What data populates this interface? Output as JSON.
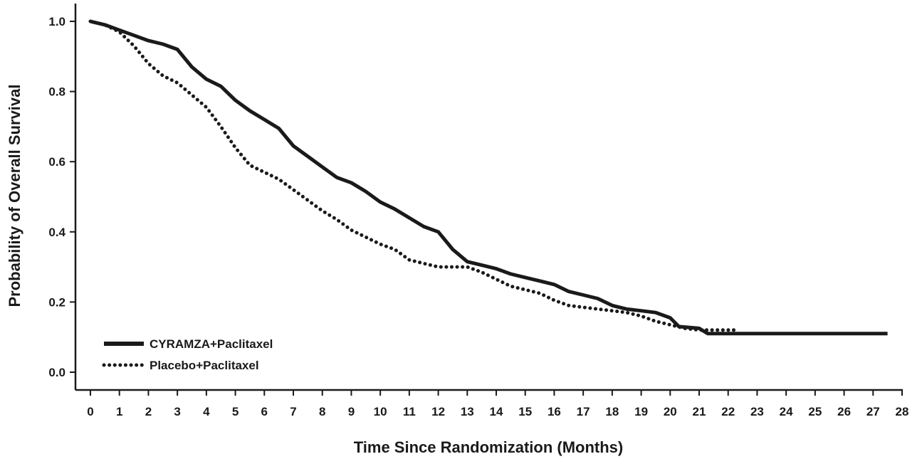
{
  "chart_data": {
    "type": "line",
    "title": "",
    "xlabel": "Time Since Randomization (Months)",
    "ylabel": "Probability of Overall Survival",
    "xlim": [
      0,
      28
    ],
    "ylim": [
      0,
      1
    ],
    "x_ticks": [
      "0",
      "1",
      "2",
      "3",
      "4",
      "5",
      "6",
      "7",
      "8",
      "9",
      "10",
      "11",
      "12",
      "13",
      "14",
      "15",
      "16",
      "17",
      "18",
      "19",
      "20",
      "21",
      "22",
      "23",
      "24",
      "25",
      "26",
      "27",
      "28"
    ],
    "y_ticks": [
      "0.0",
      "0.2",
      "0.4",
      "0.6",
      "0.8",
      "1.0"
    ],
    "grid": false,
    "legend_position": "bottom-left",
    "series": [
      {
        "name": "CYRAMZA+Paclitaxel",
        "style": "solid",
        "color": "#1a1a1a",
        "points": [
          [
            0,
            1.0
          ],
          [
            0.5,
            0.99
          ],
          [
            1,
            0.975
          ],
          [
            1.5,
            0.96
          ],
          [
            2,
            0.945
          ],
          [
            2.5,
            0.935
          ],
          [
            3,
            0.92
          ],
          [
            3.5,
            0.87
          ],
          [
            4,
            0.835
          ],
          [
            4.5,
            0.815
          ],
          [
            5,
            0.775
          ],
          [
            5.5,
            0.745
          ],
          [
            6,
            0.72
          ],
          [
            6.5,
            0.695
          ],
          [
            7,
            0.645
          ],
          [
            7.5,
            0.615
          ],
          [
            8,
            0.585
          ],
          [
            8.5,
            0.555
          ],
          [
            9,
            0.54
          ],
          [
            9.5,
            0.515
          ],
          [
            10,
            0.485
          ],
          [
            10.5,
            0.465
          ],
          [
            11,
            0.44
          ],
          [
            11.5,
            0.415
          ],
          [
            12,
            0.4
          ],
          [
            12.5,
            0.35
          ],
          [
            13,
            0.315
          ],
          [
            13.5,
            0.305
          ],
          [
            14,
            0.295
          ],
          [
            14.5,
            0.28
          ],
          [
            15,
            0.27
          ],
          [
            15.5,
            0.26
          ],
          [
            16,
            0.25
          ],
          [
            16.5,
            0.23
          ],
          [
            17,
            0.22
          ],
          [
            17.5,
            0.21
          ],
          [
            18,
            0.19
          ],
          [
            18.5,
            0.18
          ],
          [
            19,
            0.175
          ],
          [
            19.5,
            0.17
          ],
          [
            20,
            0.155
          ],
          [
            20.3,
            0.13
          ],
          [
            21,
            0.125
          ],
          [
            21.3,
            0.11
          ],
          [
            22,
            0.11
          ],
          [
            23,
            0.11
          ],
          [
            24,
            0.11
          ],
          [
            25,
            0.11
          ],
          [
            26,
            0.11
          ],
          [
            27,
            0.11
          ],
          [
            27.5,
            0.11
          ]
        ]
      },
      {
        "name": "Placebo+Paclitaxel",
        "style": "dotted",
        "color": "#1a1a1a",
        "points": [
          [
            0,
            1.0
          ],
          [
            0.5,
            0.99
          ],
          [
            1,
            0.97
          ],
          [
            1.5,
            0.93
          ],
          [
            2,
            0.88
          ],
          [
            2.5,
            0.845
          ],
          [
            3,
            0.825
          ],
          [
            3.5,
            0.79
          ],
          [
            4,
            0.755
          ],
          [
            4.5,
            0.7
          ],
          [
            5,
            0.64
          ],
          [
            5.5,
            0.59
          ],
          [
            6,
            0.57
          ],
          [
            6.5,
            0.55
          ],
          [
            7,
            0.52
          ],
          [
            7.5,
            0.49
          ],
          [
            8,
            0.46
          ],
          [
            8.5,
            0.435
          ],
          [
            9,
            0.405
          ],
          [
            9.5,
            0.385
          ],
          [
            10,
            0.365
          ],
          [
            10.5,
            0.35
          ],
          [
            11,
            0.32
          ],
          [
            11.5,
            0.31
          ],
          [
            12,
            0.3
          ],
          [
            12.5,
            0.3
          ],
          [
            13,
            0.3
          ],
          [
            13.5,
            0.285
          ],
          [
            14,
            0.265
          ],
          [
            14.5,
            0.245
          ],
          [
            15,
            0.235
          ],
          [
            15.5,
            0.225
          ],
          [
            16,
            0.205
          ],
          [
            16.5,
            0.19
          ],
          [
            17,
            0.185
          ],
          [
            17.5,
            0.18
          ],
          [
            18,
            0.175
          ],
          [
            18.5,
            0.17
          ],
          [
            19,
            0.16
          ],
          [
            19.5,
            0.145
          ],
          [
            20,
            0.135
          ],
          [
            20.5,
            0.125
          ],
          [
            21,
            0.12
          ],
          [
            21.5,
            0.12
          ],
          [
            22.2,
            0.12
          ]
        ]
      }
    ]
  }
}
